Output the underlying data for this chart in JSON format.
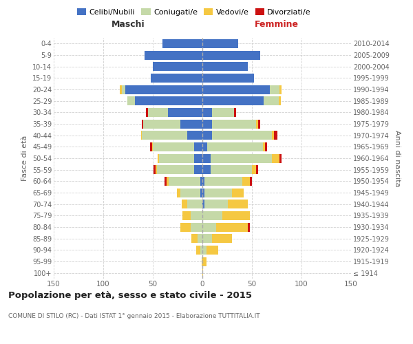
{
  "age_groups": [
    "100+",
    "95-99",
    "90-94",
    "85-89",
    "80-84",
    "75-79",
    "70-74",
    "65-69",
    "60-64",
    "55-59",
    "50-54",
    "45-49",
    "40-44",
    "35-39",
    "30-34",
    "25-29",
    "20-24",
    "15-19",
    "10-14",
    "5-9",
    "0-4"
  ],
  "birth_years": [
    "≤ 1914",
    "1915-1919",
    "1920-1924",
    "1925-1929",
    "1930-1934",
    "1935-1939",
    "1940-1944",
    "1945-1949",
    "1950-1954",
    "1955-1959",
    "1960-1964",
    "1965-1969",
    "1970-1974",
    "1975-1979",
    "1980-1984",
    "1985-1989",
    "1990-1994",
    "1995-1999",
    "2000-2004",
    "2005-2009",
    "2010-2014"
  ],
  "colors": {
    "celibe": "#4472c4",
    "coniugato": "#c5d9a8",
    "vedovo": "#f5c842",
    "divorziato": "#cc1111"
  },
  "maschi": {
    "celibe": [
      0,
      0,
      0,
      0,
      0,
      0,
      0,
      2,
      2,
      8,
      8,
      8,
      15,
      22,
      35,
      68,
      78,
      52,
      50,
      58,
      40
    ],
    "coniugato": [
      0,
      0,
      2,
      5,
      12,
      12,
      15,
      20,
      32,
      38,
      36,
      42,
      46,
      38,
      20,
      8,
      3,
      0,
      0,
      0,
      0
    ],
    "vedovo": [
      0,
      1,
      4,
      6,
      10,
      8,
      6,
      4,
      2,
      1,
      1,
      1,
      1,
      0,
      0,
      0,
      2,
      0,
      0,
      0,
      0
    ],
    "divorziato": [
      0,
      0,
      0,
      0,
      0,
      0,
      0,
      0,
      2,
      2,
      0,
      2,
      0,
      1,
      2,
      0,
      0,
      0,
      0,
      0,
      0
    ]
  },
  "femmine": {
    "celibe": [
      0,
      0,
      0,
      0,
      0,
      0,
      2,
      2,
      2,
      8,
      8,
      5,
      10,
      10,
      10,
      62,
      68,
      52,
      46,
      58,
      36
    ],
    "coniugato": [
      0,
      0,
      4,
      10,
      14,
      20,
      24,
      28,
      38,
      42,
      62,
      56,
      60,
      44,
      22,
      15,
      10,
      0,
      0,
      0,
      0
    ],
    "vedovo": [
      1,
      4,
      12,
      20,
      32,
      28,
      20,
      12,
      8,
      4,
      8,
      2,
      2,
      2,
      0,
      2,
      2,
      0,
      0,
      0,
      0
    ],
    "divorziato": [
      0,
      0,
      0,
      0,
      2,
      0,
      0,
      0,
      2,
      2,
      2,
      2,
      4,
      2,
      2,
      0,
      0,
      0,
      0,
      0,
      0
    ]
  },
  "title_main": "Popolazione per età, sesso e stato civile - 2015",
  "title_sub": "COMUNE DI STILO (RC) - Dati ISTAT 1° gennaio 2015 - Elaborazione TUTTITALIA.IT",
  "label_maschi": "Maschi",
  "label_femmine": "Femmine",
  "ylabel_left": "Fasce di età",
  "ylabel_right": "Anni di nascita",
  "xlim": 150,
  "background_color": "#ffffff",
  "grid_color": "#cccccc",
  "legend_labels": [
    "Celibi/Nubili",
    "Coniugati/e",
    "Vedovi/e",
    "Divorziati/e"
  ]
}
